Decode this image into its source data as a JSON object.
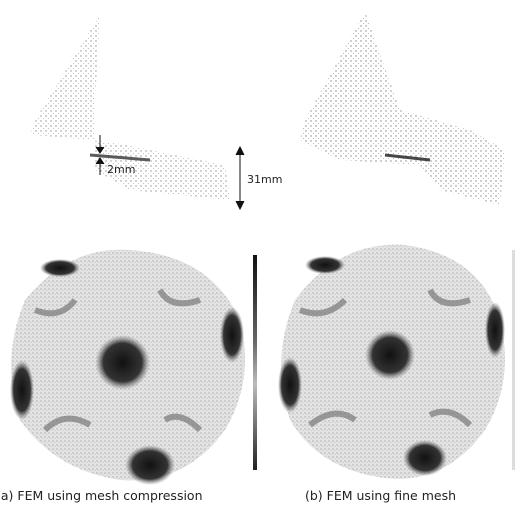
{
  "figure": {
    "annotations": {
      "thickness": "2mm",
      "height": "31mm"
    },
    "captions": [
      "(a) FEM using mesh compression",
      "(b) FEM using fine mesh"
    ]
  }
}
